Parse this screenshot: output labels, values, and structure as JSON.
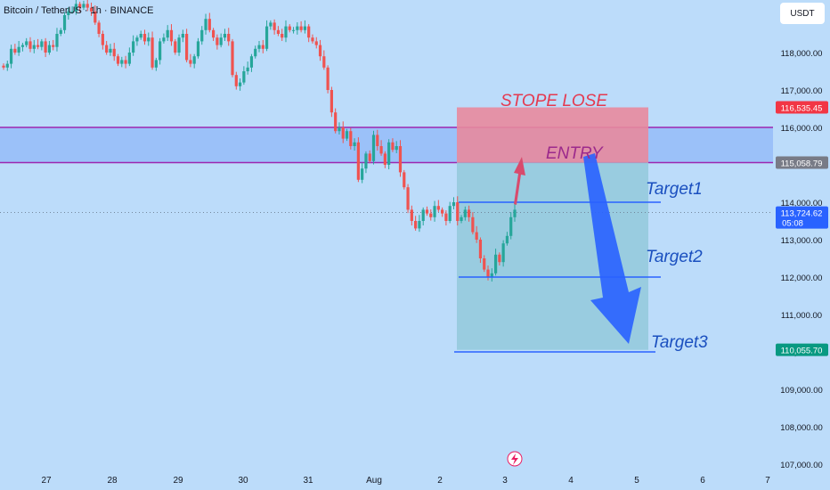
{
  "header": {
    "symbol": "Bitcoin / TetherUS · 1h · BINANCE"
  },
  "price_scale": {
    "currency": "USDT"
  },
  "colors": {
    "background": "#bcdcfa",
    "candle_up": "#26a69a",
    "candle_down": "#ef5350",
    "zone_line": "#9c27b0",
    "zone_fill": "#90b8f8",
    "stop_fill": "#e8899d",
    "target_fill": "#93c9da",
    "target_line": "#2962ff",
    "arrow_down": "#2962ff",
    "arrow_up": "#d84b6d",
    "label_blue": "#1a4fbf",
    "label_red": "#e5394f",
    "label_purple": "#9c2a8c"
  },
  "chart_data": {
    "type": "candlestick",
    "title": "",
    "x_ticks": [
      "27",
      "28",
      "29",
      "30",
      "31",
      "Aug",
      "2",
      "3",
      "4",
      "5",
      "6",
      "7"
    ],
    "y_ticks": [
      "107,000.00",
      "108,000.00",
      "109,000.00",
      "110,000.00",
      "111,000.00",
      "112,000.00",
      "113,000.00",
      "114,000.00",
      "116,000.00",
      "117,000.00",
      "118,000.00"
    ],
    "price_labels": [
      {
        "text": "116,535.45",
        "kind": "stop",
        "value": 116535.45
      },
      {
        "text": "115,058.79",
        "kind": "entry",
        "value": 115058.79
      },
      {
        "text": "113,724.62",
        "sub": "05:08",
        "kind": "current",
        "value": 113724.62
      },
      {
        "text": "110,055.70",
        "kind": "target",
        "value": 110055.7
      }
    ],
    "zone": {
      "high": 116000,
      "low": 115058.79
    },
    "stop_box": {
      "high": 116535.45,
      "low": 115058.79,
      "x_start": "Aug 2.25",
      "x_end": "Aug 5.2"
    },
    "target_box": {
      "high": 115058.79,
      "low": 110055.7,
      "x_start": "Aug 2.25",
      "x_end": "Aug 5.2"
    },
    "target_lines": [
      {
        "name": "Target1",
        "value": 114000
      },
      {
        "name": "Target2",
        "value": 112000
      },
      {
        "name": "Target3",
        "value": 110000
      }
    ],
    "annotations": [
      "STOPE LOSE",
      "ENTRY",
      "Target1",
      "Target2",
      "Target3"
    ],
    "current_price": 113724.62,
    "close_series": [
      117600,
      117700,
      118100,
      118000,
      118150,
      118200,
      118300,
      118100,
      118200,
      118150,
      118300,
      118000,
      118200,
      118150,
      118500,
      118600,
      119000,
      119100,
      119100,
      119300,
      119200,
      119300,
      119200,
      119100,
      118800,
      118500,
      118200,
      118000,
      118100,
      117900,
      117700,
      117800,
      117700,
      118000,
      118300,
      118400,
      118500,
      118300,
      118400,
      117600,
      117800,
      118300,
      118400,
      118600,
      118300,
      118000,
      118400,
      118500,
      117800,
      117700,
      117900,
      118300,
      118600,
      118900,
      118600,
      118400,
      118200,
      118400,
      118500,
      118300,
      117400,
      117100,
      117200,
      117500,
      117600,
      117900,
      118100,
      118200,
      118100,
      118700,
      118800,
      118600,
      118500,
      118400,
      118700,
      118600,
      118600,
      118700,
      118600,
      118700,
      118400,
      118300,
      118200,
      117900,
      117600,
      117000,
      116400,
      115900,
      116000,
      115700,
      115900,
      115500,
      115600,
      114600,
      114900,
      115300,
      115100,
      115800,
      115500,
      115300,
      115000,
      115600,
      115400,
      115500,
      114800,
      114400,
      113800,
      113500,
      113300,
      113500,
      113800,
      113700,
      113600,
      113900,
      113800,
      113700,
      113500,
      113900,
      114000,
      113500,
      113600,
      113800,
      113600,
      113200,
      113000,
      112500,
      112200,
      112000,
      112100,
      112600,
      112400,
      112900,
      113100,
      113600,
      113800
    ]
  }
}
